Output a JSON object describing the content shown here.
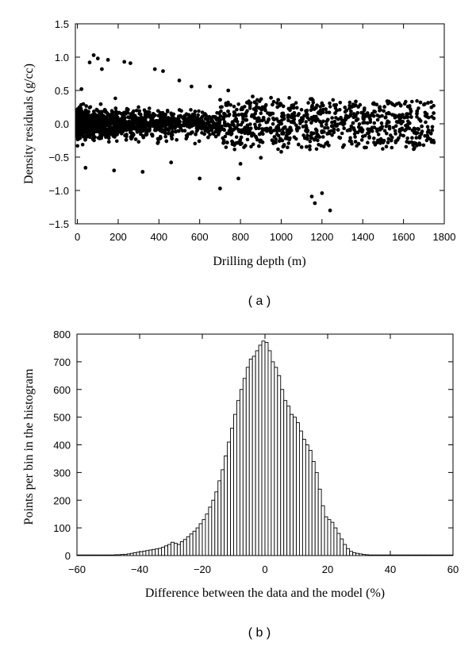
{
  "chart_data": [
    {
      "panel_label": "( a )",
      "type": "scatter",
      "xlabel": "Drilling depth (m)",
      "ylabel": "Density residuals (g/cc)",
      "xlim": [
        -10,
        1800
      ],
      "ylim": [
        -1.5,
        1.5
      ],
      "xticks": [
        "0",
        "200",
        "400",
        "600",
        "800",
        "1000",
        "1200",
        "1400",
        "1600",
        "1800"
      ],
      "yticks": [
        "1.5",
        "1.0",
        "0.5",
        "0.0",
        "−0.5",
        "−1.0",
        "−1.5"
      ],
      "marker_color": "#000000",
      "description_points": [
        [
          20,
          0.52
        ],
        [
          40,
          -0.66
        ],
        [
          60,
          0.92
        ],
        [
          80,
          1.03
        ],
        [
          100,
          0.98
        ],
        [
          120,
          0.82
        ],
        [
          150,
          0.96
        ],
        [
          180,
          -0.7
        ],
        [
          230,
          0.93
        ],
        [
          260,
          0.91
        ],
        [
          320,
          -0.72
        ],
        [
          380,
          0.82
        ],
        [
          420,
          0.79
        ],
        [
          460,
          -0.58
        ],
        [
          500,
          0.65
        ],
        [
          560,
          0.56
        ],
        [
          600,
          -0.82
        ],
        [
          650,
          0.56
        ],
        [
          700,
          -0.97
        ],
        [
          740,
          0.5
        ],
        [
          790,
          -0.82
        ],
        [
          800,
          -0.6
        ],
        [
          860,
          0.41
        ],
        [
          900,
          -0.51
        ],
        [
          950,
          0.39
        ],
        [
          1000,
          -0.42
        ],
        [
          1060,
          0.28
        ],
        [
          1100,
          -0.35
        ],
        [
          1150,
          -1.09
        ],
        [
          1165,
          -1.19
        ],
        [
          1200,
          -1.04
        ],
        [
          1240,
          -1.3
        ],
        [
          1260,
          0.28
        ],
        [
          1320,
          0.2
        ],
        [
          1380,
          -0.3
        ],
        [
          1420,
          0.12
        ],
        [
          1460,
          0.18
        ],
        [
          1500,
          -0.28
        ],
        [
          1540,
          -0.25
        ],
        [
          1580,
          0.13
        ],
        [
          1620,
          0.1
        ],
        [
          1650,
          -0.38
        ],
        [
          1680,
          -0.19
        ],
        [
          1720,
          -0.21
        ]
      ]
    },
    {
      "panel_label": "( b )",
      "type": "bar",
      "xlabel": "Difference between the data and the model (%)",
      "ylabel": "Points per bin in the histogram",
      "xlim": [
        -60,
        60
      ],
      "ylim": [
        0,
        800
      ],
      "xticks": [
        "−60",
        "−40",
        "−20",
        "0",
        "20",
        "40",
        "60"
      ],
      "yticks": [
        "800",
        "700",
        "600",
        "500",
        "400",
        "300",
        "200",
        "100",
        "0"
      ],
      "bin_width": 1,
      "bin_start": -60,
      "values": [
        2,
        2,
        2,
        2,
        2,
        2,
        2,
        2,
        2,
        2,
        2,
        2,
        3,
        3,
        4,
        4,
        6,
        8,
        10,
        12,
        14,
        16,
        18,
        20,
        22,
        24,
        26,
        30,
        35,
        40,
        48,
        44,
        40,
        50,
        58,
        68,
        78,
        88,
        100,
        115,
        130,
        150,
        175,
        200,
        230,
        270,
        310,
        360,
        410,
        460,
        510,
        560,
        600,
        640,
        680,
        710,
        720,
        740,
        760,
        775,
        770,
        740,
        700,
        680,
        650,
        600,
        560,
        540,
        510,
        500,
        480,
        450,
        420,
        400,
        380,
        340,
        300,
        240,
        180,
        140,
        130,
        120,
        100,
        80,
        60,
        40,
        25,
        15,
        10,
        8,
        6,
        4,
        3,
        2,
        2,
        2,
        2,
        2,
        2,
        2,
        2,
        2,
        2,
        2,
        2,
        2,
        2,
        2,
        2,
        2,
        2,
        2,
        2,
        2,
        2,
        2,
        2,
        2,
        2,
        2
      ],
      "bar_fill": "#ffffff",
      "bar_stroke": "#000000"
    }
  ]
}
